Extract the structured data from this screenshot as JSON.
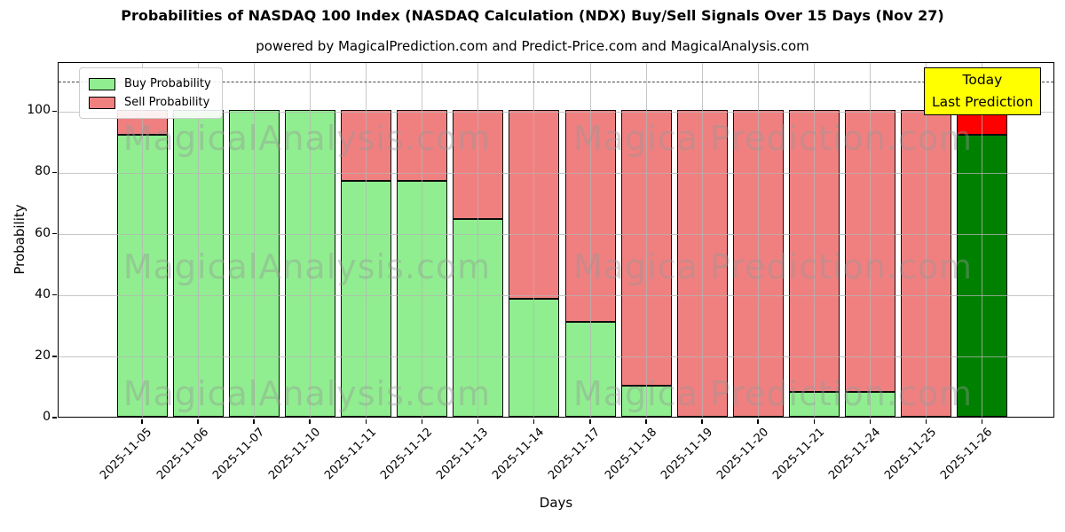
{
  "chart_data": {
    "type": "bar",
    "stacked": true,
    "title": "Probabilities of NASDAQ 100 Index (NASDAQ Calculation (NDX) Buy/Sell Signals Over 15 Days (Nov 27)",
    "subtitle": "powered by MagicalPrediction.com and Predict-Price.com and MagicalAnalysis.com",
    "xlabel": "Days",
    "ylabel": "Probability",
    "ylim": [
      0,
      116
    ],
    "yticks": [
      0,
      20,
      40,
      60,
      80,
      100
    ],
    "grid": true,
    "dashed_hline_y": 110,
    "categories": [
      "2025-11-05",
      "2025-11-06",
      "2025-11-07",
      "2025-11-10",
      "2025-11-11",
      "2025-11-12",
      "2025-11-13",
      "2025-11-14",
      "2025-11-17",
      "2025-11-18",
      "2025-11-19",
      "2025-11-20",
      "2025-11-21",
      "2025-11-24",
      "2025-11-25",
      "2025-11-26"
    ],
    "series": [
      {
        "name": "Buy Probability",
        "color": "#90ee90",
        "values": [
          92,
          100,
          100,
          100,
          77,
          77,
          64.5,
          38.5,
          31,
          10,
          0,
          0,
          8,
          8,
          0,
          92
        ]
      },
      {
        "name": "Sell Probability",
        "color": "#f08080",
        "values": [
          8,
          0,
          0,
          0,
          23,
          23,
          35.5,
          61.5,
          69,
          90,
          100,
          100,
          92,
          92,
          100,
          8
        ]
      }
    ],
    "today_bar": {
      "category": "2025-11-26",
      "buy_color": "#008000",
      "sell_color": "#ff0000"
    },
    "legend": {
      "position": "upper left",
      "entries": [
        {
          "label": "Buy Probability",
          "color": "#90ee90"
        },
        {
          "label": "Sell Probability",
          "color": "#f08080"
        }
      ]
    },
    "annotation": {
      "lines": [
        "Today",
        "Last Prediction"
      ],
      "bg_color": "#ffff00"
    },
    "watermarks": [
      "MagicalAnalysis.com",
      "Magica Prediction.com"
    ]
  }
}
